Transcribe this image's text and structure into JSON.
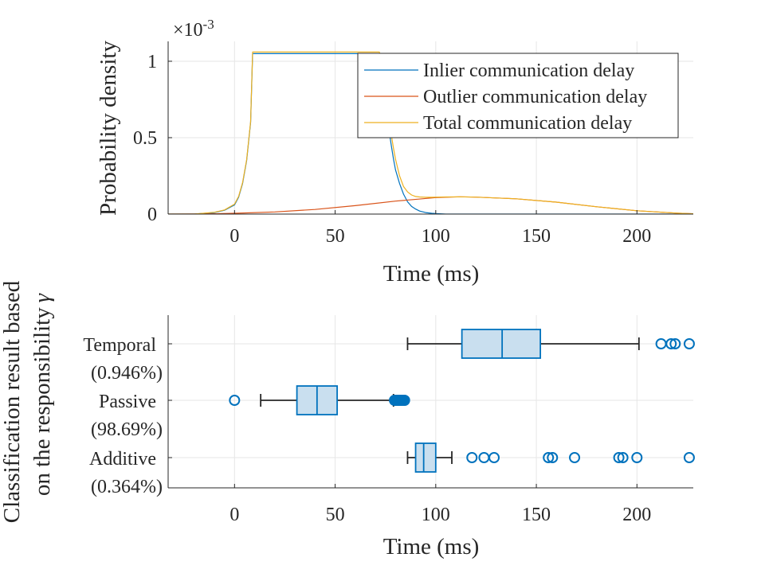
{
  "chart_data": [
    {
      "type": "line",
      "title": "",
      "xlabel": "Time (ms)",
      "ylabel": "Probability density",
      "exponent_label": "×10",
      "exponent_power": "-3",
      "xlim": [
        -33,
        228
      ],
      "ylim": [
        0,
        0.00113
      ],
      "xticks": [
        0,
        50,
        100,
        150,
        200
      ],
      "yticks": [
        0,
        0.0005,
        0.001
      ],
      "ytick_labels": [
        "0",
        "0.5",
        "1"
      ],
      "grid": true,
      "legend_position": "top-right",
      "series": [
        {
          "name": "Inlier communication delay",
          "color": "#0072BD",
          "x": [
            -33,
            -20,
            -10,
            -5,
            0,
            2,
            4,
            6,
            8,
            9,
            70,
            72,
            74,
            75,
            76,
            77,
            78,
            79,
            80,
            82,
            84,
            86,
            88,
            90,
            92,
            95,
            98,
            100,
            105,
            110,
            120,
            140,
            160,
            180,
            200,
            228
          ],
          "y": [
            0,
            0,
            1e-05,
            2.5e-05,
            6e-05,
            0.00011,
            0.0002,
            0.00035,
            0.0006,
            0.00105,
            0.00105,
            0.00095,
            0.00081,
            0.00072,
            0.00062,
            0.00053,
            0.00044,
            0.00036,
            0.00029,
            0.0002,
            0.00013,
            8e-05,
            5e-05,
            3.3e-05,
            2e-05,
            1e-05,
            5e-06,
            3e-06,
            0,
            0,
            0,
            0,
            0,
            0,
            0,
            0
          ]
        },
        {
          "name": "Outlier communication delay",
          "color": "#D95319",
          "x": [
            -33,
            -20,
            -10,
            0,
            20,
            40,
            60,
            80,
            100,
            112,
            120,
            140,
            160,
            180,
            200,
            220,
            228
          ],
          "y": [
            0,
            1e-06,
            2e-06,
            5e-06,
            1.4e-05,
            3e-05,
            5.5e-05,
            8.5e-05,
            0.000108,
            0.000113,
            0.000111,
            0.0001,
            7.8e-05,
            4.8e-05,
            2.2e-05,
            6e-06,
            2e-06
          ]
        },
        {
          "name": "Total communication delay",
          "color": "#EDB120",
          "x": [
            -33,
            -20,
            -10,
            -5,
            0,
            2,
            4,
            6,
            8,
            9,
            72,
            74,
            75,
            76,
            77,
            78,
            79,
            80,
            82,
            84,
            86,
            88,
            90,
            92,
            95,
            98,
            100,
            105,
            112,
            120,
            140,
            160,
            180,
            200,
            220,
            228
          ],
          "y": [
            0,
            0,
            1.2e-05,
            2.7e-05,
            6.5e-05,
            0.000115,
            0.000205,
            0.000355,
            0.000605,
            0.00106,
            0.00106,
            0.00088,
            0.00079,
            0.0007,
            0.0006,
            0.00051,
            0.00043,
            0.00036,
            0.00025,
            0.00018,
            0.000145,
            0.000125,
            0.000115,
            0.000112,
            0.00011,
            0.00011,
            0.000111,
            0.000112,
            0.000113,
            0.000111,
            0.0001,
            7.8e-05,
            4.8e-05,
            2.2e-05,
            6e-06,
            2e-06
          ]
        }
      ]
    },
    {
      "type": "box",
      "title": "",
      "xlabel": "Time (ms)",
      "ylabel_line1": "Classification result based",
      "ylabel_line2": "on the responsibility",
      "ylabel_symbol": "γ",
      "xlim": [
        -33,
        228
      ],
      "xticks": [
        0,
        50,
        100,
        150,
        200
      ],
      "grid": true,
      "color": "#0072BD",
      "box_fill": "#C9DFEF",
      "categories": [
        {
          "label": "Temporal",
          "percent": "(0.946%)",
          "whisker_low": 86,
          "q1": 113,
          "median": 133,
          "q3": 152,
          "whisker_high": 201,
          "outliers": [
            212,
            217,
            219,
            226
          ]
        },
        {
          "label": "Passive",
          "percent": "(98.69%)",
          "whisker_low": 13,
          "q1": 31,
          "median": 41,
          "q3": 51,
          "whisker_high": 79,
          "outliers": [
            0,
            79.5,
            80,
            80.5,
            81,
            81.5,
            82,
            82.5,
            83,
            83.5,
            84,
            84.5
          ]
        },
        {
          "label": "Additive",
          "percent": "(0.364%)",
          "whisker_low": 86,
          "q1": 90,
          "median": 94,
          "q3": 100,
          "whisker_high": 108,
          "outliers": [
            118,
            124,
            129,
            156,
            158,
            169,
            191,
            193,
            200,
            226
          ]
        }
      ]
    }
  ]
}
